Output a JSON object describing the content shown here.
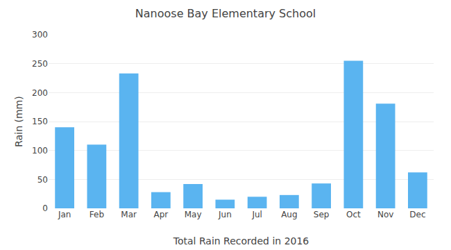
{
  "chart_data": {
    "type": "bar",
    "title": "Nanoose Bay Elementary School",
    "xlabel": "Total Rain Recorded in 2016",
    "ylabel": "Rain (mm)",
    "categories": [
      "Jan",
      "Feb",
      "Mar",
      "Apr",
      "May",
      "Jun",
      "Jul",
      "Aug",
      "Sep",
      "Oct",
      "Nov",
      "Dec"
    ],
    "values": [
      140,
      110,
      233,
      28,
      42,
      15,
      20,
      23,
      43,
      255,
      181,
      62
    ],
    "color": "#5ab4f0",
    "ylim": [
      0,
      300
    ],
    "yticks": [
      0,
      50,
      100,
      150,
      200,
      250,
      300
    ],
    "grid": true
  }
}
